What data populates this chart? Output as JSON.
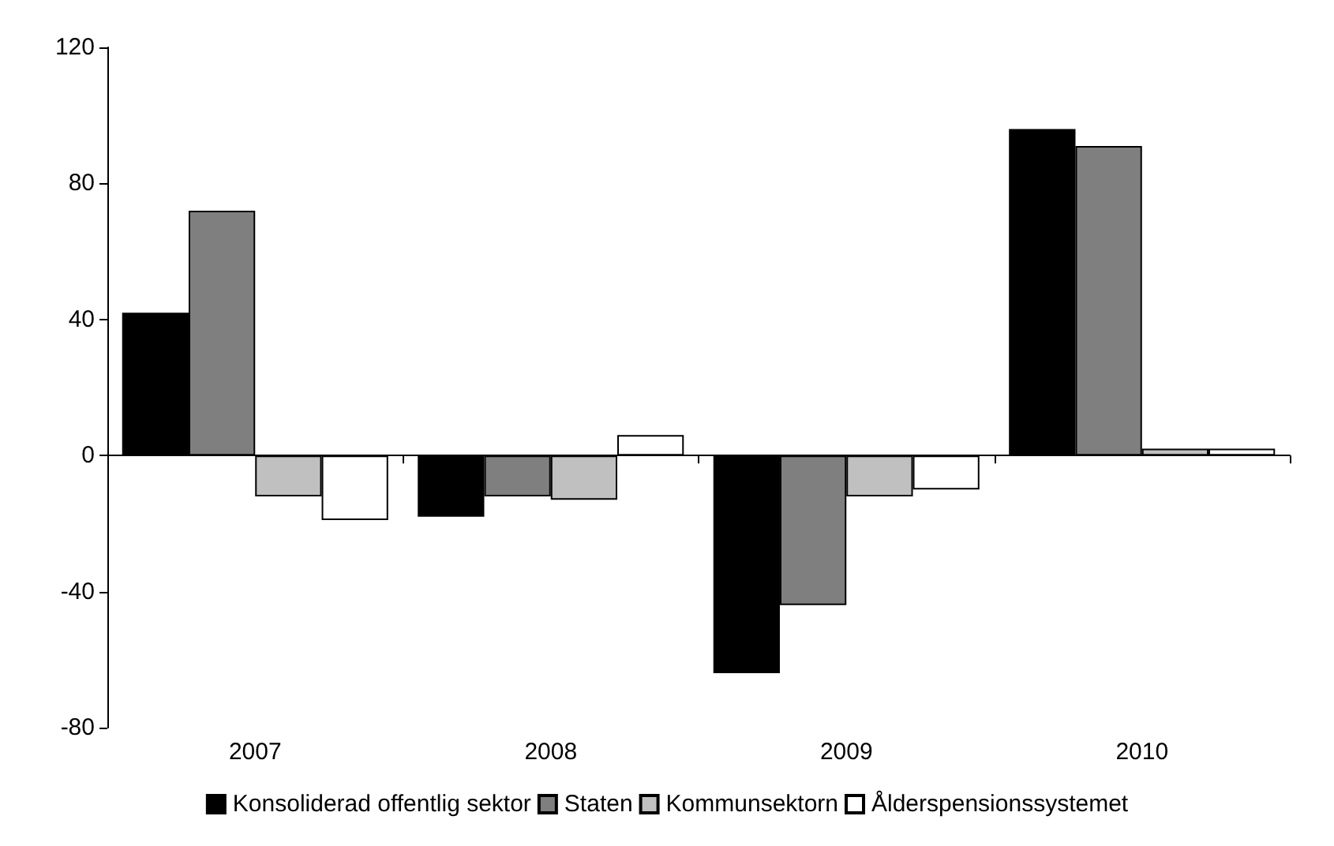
{
  "chart_data": {
    "type": "bar",
    "categories": [
      "2007",
      "2008",
      "2009",
      "2010"
    ],
    "series": [
      {
        "name": "Konsoliderad offentlig sektor",
        "color": "#000000",
        "values": [
          42,
          -18,
          -64,
          96
        ]
      },
      {
        "name": "Staten",
        "color": "#7f7f7f",
        "values": [
          72,
          -12,
          -44,
          91
        ]
      },
      {
        "name": "Kommunsektorn",
        "color": "#c0c0c0",
        "values": [
          -12,
          -13,
          -12,
          2
        ]
      },
      {
        "name": "Ålderspensionssystemet",
        "color": "#ffffff",
        "values": [
          -19,
          6,
          -10,
          2
        ]
      }
    ],
    "ylim": [
      -80,
      120
    ],
    "yticks": [
      -80,
      -40,
      0,
      40,
      80,
      120
    ],
    "legend": "bottom"
  }
}
